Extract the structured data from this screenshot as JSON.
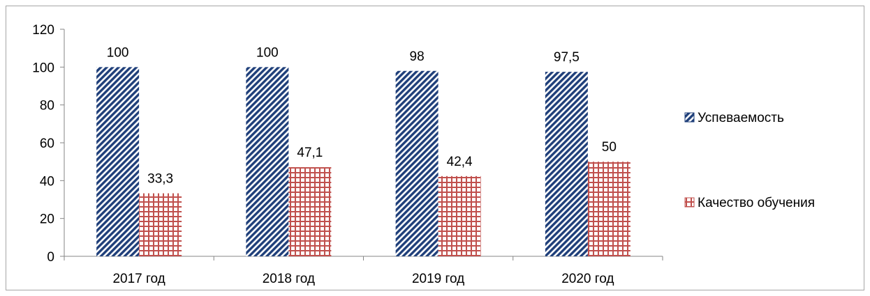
{
  "chart_data": {
    "type": "bar",
    "categories": [
      "2017 год",
      "2018 год",
      "2019 год",
      "2020 год"
    ],
    "category_values": [
      2017,
      2018,
      2019,
      2020
    ],
    "series": [
      {
        "name": "Успеваемость",
        "values": [
          100,
          100,
          98,
          97.5
        ],
        "labels": [
          "100",
          "100",
          "98",
          "97,5"
        ],
        "color": "#1f3f7a",
        "pattern": "diagonal-stripes"
      },
      {
        "name": "Качество обучения",
        "values": [
          33.3,
          47.1,
          42.4,
          50
        ],
        "labels": [
          "33,3",
          "47,1",
          "42,4",
          "50"
        ],
        "color": "#c0504d",
        "pattern": "grid"
      }
    ],
    "title": "",
    "xlabel": "",
    "ylabel": "",
    "ylim": [
      0,
      120
    ],
    "yticks": [
      0,
      20,
      40,
      60,
      80,
      100,
      120
    ],
    "ytick_labels": [
      "0",
      "20",
      "40",
      "60",
      "80",
      "100",
      "120"
    ],
    "grid": false,
    "legend_position": "right"
  }
}
